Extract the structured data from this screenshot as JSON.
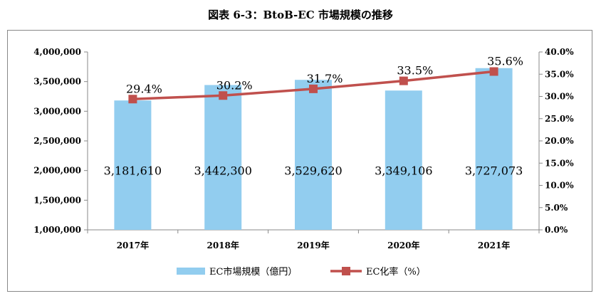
{
  "chart_data": {
    "type": "bar",
    "title": "図表 6-3：BtoB-EC 市場規模の推移",
    "categories": [
      "2017年",
      "2018年",
      "2019年",
      "2020年",
      "2021年"
    ],
    "series": [
      {
        "name": "EC市場規模（億円）",
        "kind": "bar",
        "axis": "left",
        "values": [
          3181610,
          3442300,
          3529620,
          3349106,
          3727073
        ],
        "labels": [
          "3,181,610",
          "3,442,300",
          "3,529,620",
          "3,349,106",
          "3,727,073"
        ],
        "color": "#92CDEF"
      },
      {
        "name": "EC化率（%）",
        "kind": "line",
        "axis": "right",
        "values": [
          29.4,
          30.2,
          31.7,
          33.5,
          35.6
        ],
        "labels": [
          "29.4%",
          "30.2%",
          "31.7%",
          "33.5%",
          "35.6%"
        ],
        "color": "#C0504D"
      }
    ],
    "y_left": {
      "min": 1000000,
      "max": 4000000,
      "ticks": [
        "1,000,000",
        "1,500,000",
        "2,000,000",
        "2,500,000",
        "3,000,000",
        "3,500,000",
        "4,000,000"
      ]
    },
    "y_right": {
      "min": 0,
      "max": 40,
      "ticks": [
        "0.0%",
        "5.0%",
        "10.0%",
        "15.0%",
        "20.0%",
        "25.0%",
        "30.0%",
        "35.0%",
        "40.0%"
      ]
    },
    "grid": false,
    "legend_position": "bottom"
  }
}
